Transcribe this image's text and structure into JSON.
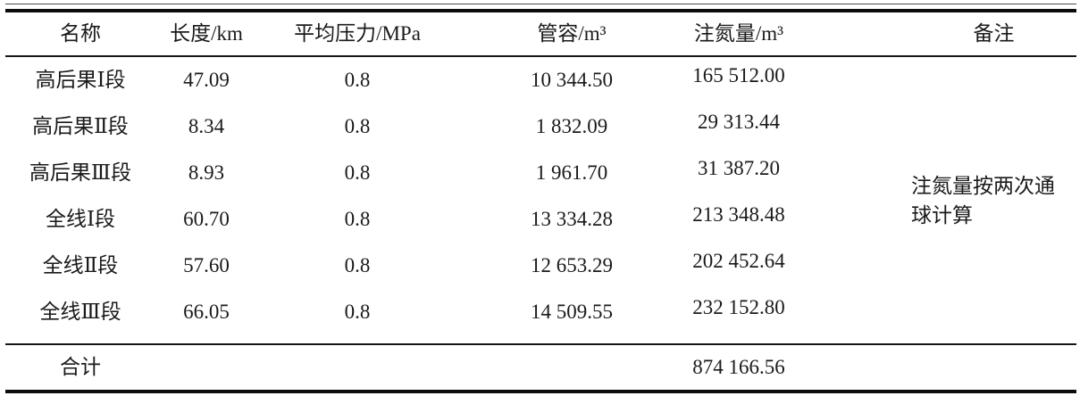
{
  "table": {
    "headers": {
      "name": "名称",
      "length": "长度/km",
      "pressure": "平均压力/MPa",
      "volume": "管容/m³",
      "nitrogen": "注氮量/m³",
      "remark": "备注"
    },
    "rows": [
      {
        "name": "高后果Ⅰ段",
        "length": "47.09",
        "pressure": "0.8",
        "volume": "10 344.50",
        "nitrogen": "165 512.00"
      },
      {
        "name": "高后果Ⅱ段",
        "length": "8.34",
        "pressure": "0.8",
        "volume": "1 832.09",
        "nitrogen": "29 313.44"
      },
      {
        "name": "高后果Ⅲ段",
        "length": "8.93",
        "pressure": "0.8",
        "volume": "1 961.70",
        "nitrogen": "31 387.20"
      },
      {
        "name": "全线Ⅰ段",
        "length": "60.70",
        "pressure": "0.8",
        "volume": "13 334.28",
        "nitrogen": "213 348.48"
      },
      {
        "name": "全线Ⅱ段",
        "length": "57.60",
        "pressure": "0.8",
        "volume": "12 653.29",
        "nitrogen": "202 452.64"
      },
      {
        "name": "全线Ⅲ段",
        "length": "66.05",
        "pressure": "0.8",
        "volume": "14 509.55",
        "nitrogen": "232 152.80"
      }
    ],
    "remark_note": "注氮量按两次通球计算",
    "total": {
      "label": "合计",
      "nitrogen": "874 166.56"
    }
  },
  "colors": {
    "background": "#ffffff",
    "text": "#1a1a1a",
    "rule": "#0c0c0c"
  }
}
